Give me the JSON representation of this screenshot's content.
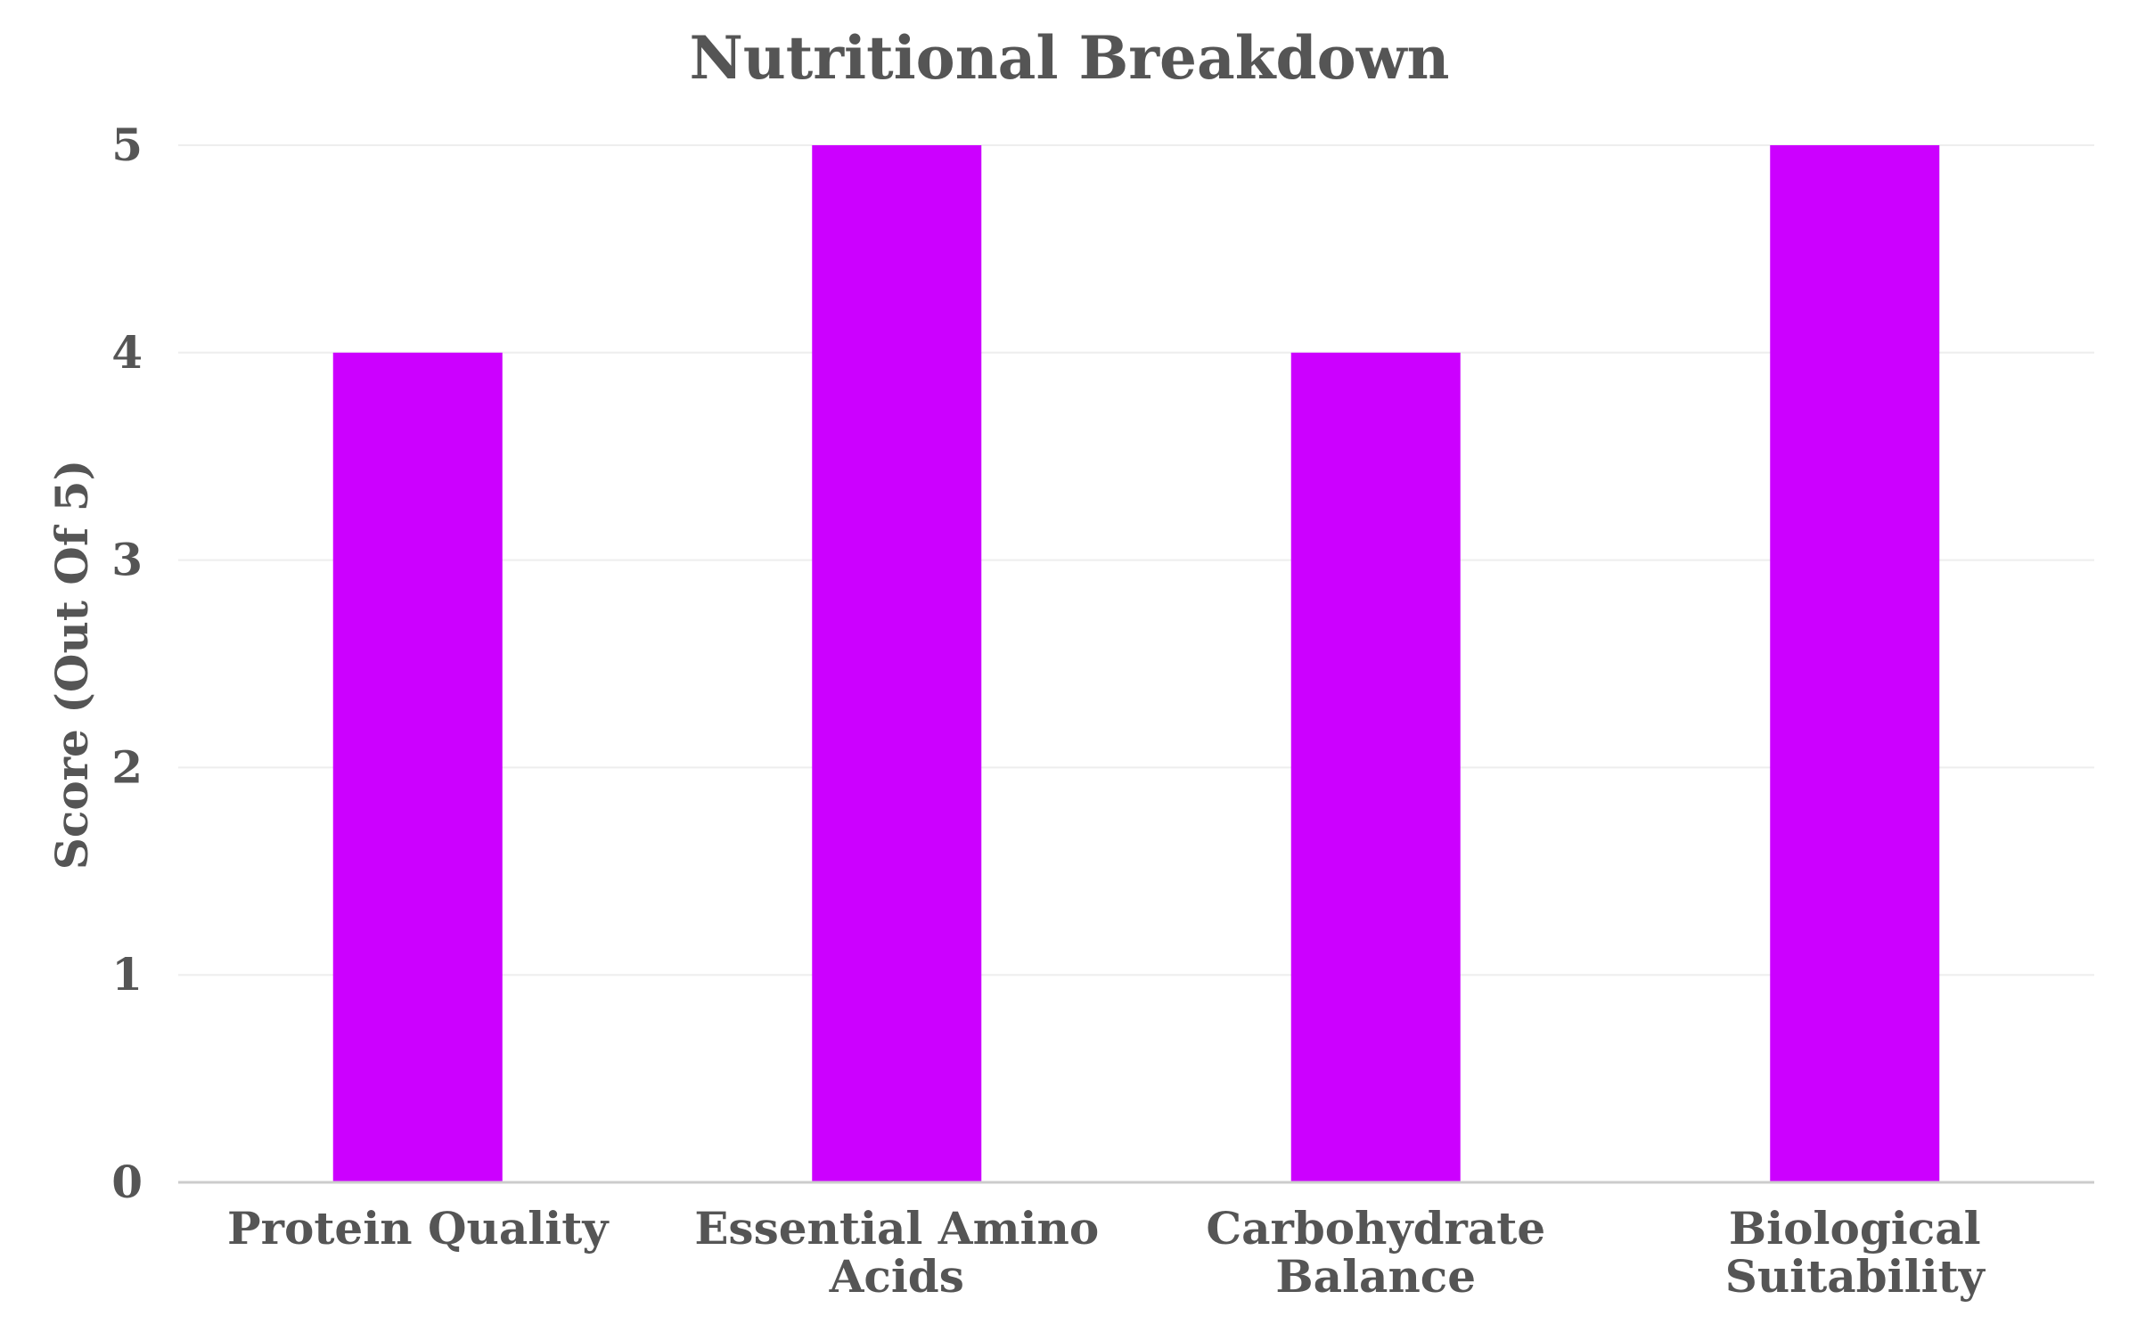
{
  "chart_data": {
    "type": "bar",
    "title": "Nutritional Breakdown",
    "xlabel": "",
    "ylabel": "Score (Out Of 5)",
    "categories": [
      [
        "Protein Quality"
      ],
      [
        "Essential Amino",
        "Acids"
      ],
      [
        "Carbohydrate",
        "Balance"
      ],
      [
        "Biological",
        "Suitability"
      ]
    ],
    "values": [
      4,
      5,
      4,
      5
    ],
    "ylim": [
      0,
      5
    ],
    "yticks": [
      "0",
      "1",
      "2",
      "3",
      "4",
      "5"
    ],
    "grid": true,
    "legend": "none",
    "bar_color": "#cc00ff"
  }
}
